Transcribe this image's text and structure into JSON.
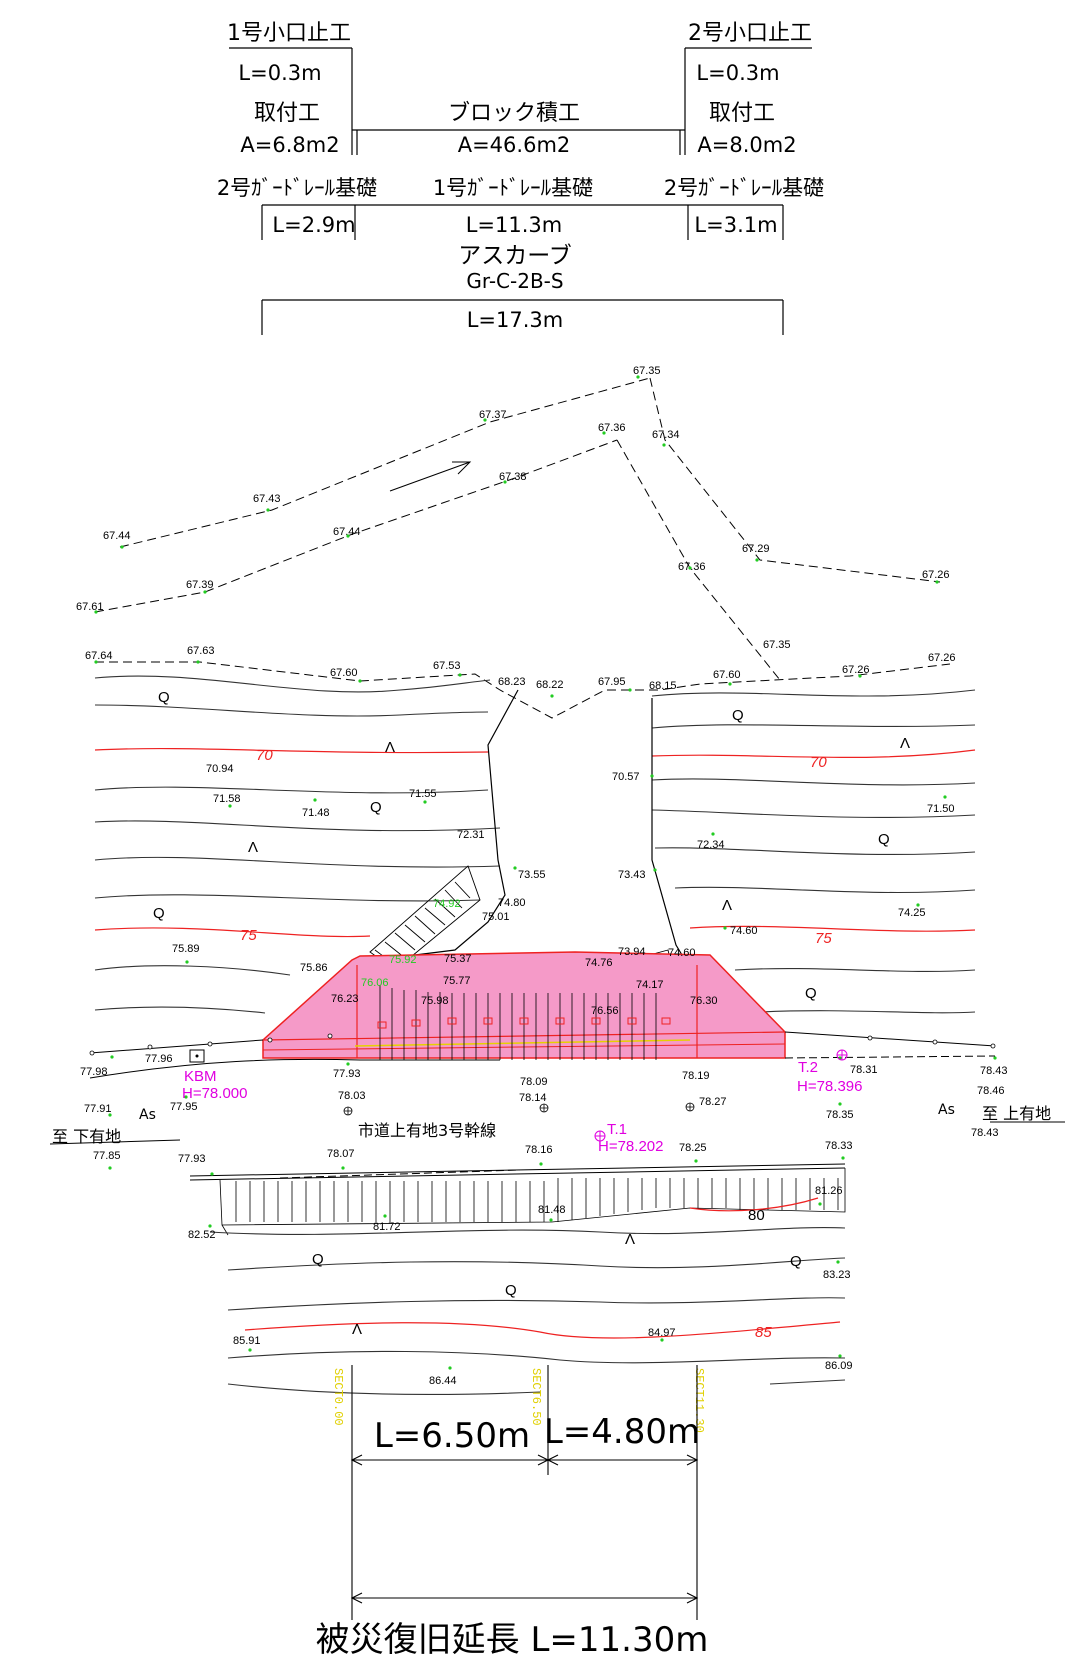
{
  "header": {
    "left_end_stop": {
      "title": "1号小口止工",
      "length": "L=0.3m"
    },
    "right_end_stop": {
      "title": "2号小口止工",
      "length": "L=0.3m"
    },
    "left_fitting": {
      "title": "取付工",
      "area": "A=6.8m2"
    },
    "block_wall": {
      "title": "ブロック積工",
      "area": "A=46.6m2"
    },
    "right_fitting": {
      "title": "取付工",
      "area": "A=8.0m2"
    },
    "guardrail_left": {
      "title": "2号ｶﾞｰﾄﾞﾚｰﾙ基礎",
      "length": "L=2.9m"
    },
    "guardrail_center": {
      "title": "1号ｶﾞｰﾄﾞﾚｰﾙ基礎",
      "length": "L=11.3m"
    },
    "guardrail_right": {
      "title": "2号ｶﾞｰﾄﾞﾚｰﾙ基礎",
      "length": "L=3.1m"
    },
    "ascurb": {
      "title": "アスカーブ",
      "type": "Gr-C-2B-S",
      "length": "L=17.3m"
    }
  },
  "elevations": [
    {
      "text": "67.35"
    },
    {
      "text": "67.37"
    },
    {
      "text": "67.36"
    },
    {
      "text": "67.34"
    },
    {
      "text": "67.38"
    },
    {
      "text": "67.43"
    },
    {
      "text": "67.44"
    },
    {
      "text": "67.44"
    },
    {
      "text": "67.29"
    },
    {
      "text": "67.36"
    },
    {
      "text": "67.26"
    },
    {
      "text": "67.39"
    },
    {
      "text": "67.61"
    },
    {
      "text": "67.35"
    },
    {
      "text": "67.64"
    },
    {
      "text": "67.63"
    },
    {
      "text": "67.60"
    },
    {
      "text": "67.53"
    },
    {
      "text": "68.23"
    },
    {
      "text": "68.22"
    },
    {
      "text": "67.95"
    },
    {
      "text": "68.15"
    },
    {
      "text": "67.60"
    },
    {
      "text": "67.26"
    },
    {
      "text": "67.26"
    },
    {
      "text": "70.94"
    },
    {
      "text": "70.57"
    },
    {
      "text": "71.58"
    },
    {
      "text": "71.48"
    },
    {
      "text": "71.55"
    },
    {
      "text": "71.50"
    },
    {
      "text": "72.31"
    },
    {
      "text": "72.34"
    },
    {
      "text": "73.55"
    },
    {
      "text": "73.43"
    },
    {
      "text": "74.80"
    },
    {
      "text": "75.01"
    },
    {
      "text": "74.25"
    },
    {
      "text": "74.60"
    },
    {
      "text": "75.89"
    },
    {
      "text": "73.94"
    },
    {
      "text": "74.60"
    },
    {
      "text": "75.37"
    },
    {
      "text": "74.76"
    },
    {
      "text": "75.86"
    },
    {
      "text": "75.77"
    },
    {
      "text": "74.17"
    },
    {
      "text": "76.23"
    },
    {
      "text": "75.98"
    },
    {
      "text": "76.30"
    },
    {
      "text": "76.56"
    },
    {
      "text": "77.96"
    },
    {
      "text": "78.31"
    },
    {
      "text": "77.98"
    },
    {
      "text": "77.93"
    },
    {
      "text": "78.09"
    },
    {
      "text": "78.19"
    },
    {
      "text": "78.43"
    },
    {
      "text": "78.03"
    },
    {
      "text": "78.46"
    },
    {
      "text": "77.91"
    },
    {
      "text": "77.95"
    },
    {
      "text": "78.14"
    },
    {
      "text": "78.27"
    },
    {
      "text": "78.35"
    },
    {
      "text": "78.43"
    },
    {
      "text": "77.85"
    },
    {
      "text": "77.93"
    },
    {
      "text": "78.07"
    },
    {
      "text": "78.16"
    },
    {
      "text": "78.25"
    },
    {
      "text": "78.33"
    },
    {
      "text": "81.48"
    },
    {
      "text": "81.26"
    },
    {
      "text": "81.72"
    },
    {
      "text": "82.52"
    },
    {
      "text": "83.23"
    },
    {
      "text": "84.97"
    },
    {
      "text": "85.91"
    },
    {
      "text": "86.09"
    },
    {
      "text": "86.44"
    }
  ],
  "green_labels": [
    "74.92",
    "75.92",
    "76.06"
  ],
  "contour_labels": [
    "70",
    "70",
    "75",
    "75",
    "80",
    "85"
  ],
  "benchmarks": {
    "kbm_name": "KBM",
    "kbm_h": "H=78.000",
    "t1_name": "T.1",
    "t1_h": "H=78.202",
    "t2_name": "T.2",
    "t2_h": "H=78.396"
  },
  "road": {
    "name": "市道上有地3号幹線",
    "to_left": "至 下有地",
    "to_right": "至 上有地",
    "surface_left": "As",
    "surface_right": "As"
  },
  "sections": [
    "SECT0.00",
    "SECT6.50",
    "SECT11.30"
  ],
  "dimensions": {
    "span1": "L=6.50m",
    "span2": "L=4.80m",
    "total": "被災復旧延長 L=11.30m"
  },
  "colors": {
    "contour_index": "#ee2222",
    "wall_fill": "#f59ac8",
    "benchmark": "#e000e0",
    "section": "#e0d000"
  }
}
